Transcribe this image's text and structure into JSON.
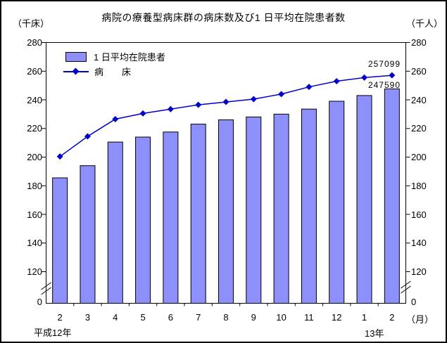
{
  "title": "病院の療養型病床群の病床数及び1 日平均在院患者数",
  "units": {
    "left_axis": "（千床）",
    "right_axis": "（千人）",
    "x_axis": "（月）"
  },
  "footer": {
    "start_year_label": "平成12年",
    "end_year_label": "13年"
  },
  "legend": {
    "bar_series_label": "1 日平均在院患者",
    "line_series_label": "病　　床"
  },
  "annotations": {
    "beds_final": "257099",
    "patients_final": "247590"
  },
  "colors": {
    "bar_fill": "#8d8ffb",
    "bar_stroke": "#000000",
    "line_color": "#0000cc",
    "frame": "#000000"
  },
  "chart_data": {
    "type": "bar",
    "title": "病院の療養型病床群の病床数及び1 日平均在院患者数",
    "categories": [
      "2",
      "3",
      "4",
      "5",
      "6",
      "7",
      "8",
      "9",
      "10",
      "11",
      "12",
      "1",
      "2"
    ],
    "series": [
      {
        "name": "1 日平均在院患者",
        "type": "bar",
        "unit": "千人",
        "values": [
          185.5,
          194.0,
          210.5,
          214.0,
          217.5,
          223.0,
          226.0,
          228.0,
          230.0,
          233.5,
          239.0,
          243.0,
          247.59
        ]
      },
      {
        "name": "病床",
        "type": "line",
        "unit": "千床",
        "values": [
          200.4,
          214.5,
          226.5,
          230.5,
          233.5,
          236.5,
          238.5,
          240.5,
          244.0,
          249.0,
          253.0,
          255.5,
          257.099
        ]
      }
    ],
    "y_ticks": [
      280,
      260,
      240,
      220,
      200,
      180,
      160,
      140,
      120
    ],
    "y_base_label": "0",
    "ylim": [
      120,
      280
    ],
    "axis_break": true,
    "grid": false,
    "legend_position": "top-left"
  }
}
